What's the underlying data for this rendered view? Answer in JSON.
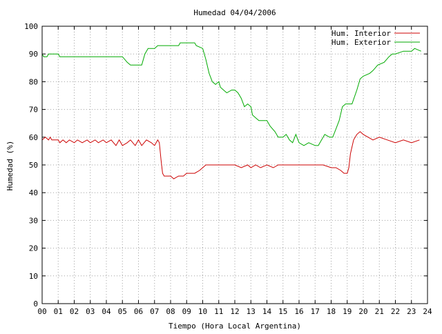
{
  "chart_data": {
    "type": "line",
    "title": "Humedad 04/04/2006",
    "xlabel": "Tiempo (Hora Local Argentina)",
    "ylabel": "Humedad (%)",
    "xlim": [
      0,
      24
    ],
    "ylim": [
      0,
      100
    ],
    "x_ticks": [
      "00",
      "01",
      "02",
      "03",
      "04",
      "05",
      "06",
      "07",
      "08",
      "09",
      "10",
      "11",
      "12",
      "13",
      "14",
      "15",
      "16",
      "17",
      "18",
      "19",
      "20",
      "21",
      "22",
      "23",
      "24"
    ],
    "y_ticks": [
      "0",
      "10",
      "20",
      "30",
      "40",
      "50",
      "60",
      "70",
      "80",
      "90",
      "100"
    ],
    "grid": true,
    "legend_position": "top-right",
    "series": [
      {
        "name": "Hum. Interior",
        "color": "#cc0000",
        "points": [
          [
            0.0,
            59
          ],
          [
            0.2,
            60
          ],
          [
            0.4,
            59
          ],
          [
            0.5,
            60
          ],
          [
            0.6,
            59
          ],
          [
            0.8,
            59
          ],
          [
            1.0,
            59
          ],
          [
            1.1,
            58
          ],
          [
            1.3,
            59
          ],
          [
            1.5,
            58
          ],
          [
            1.7,
            59
          ],
          [
            2.0,
            58
          ],
          [
            2.2,
            59
          ],
          [
            2.5,
            58
          ],
          [
            2.8,
            59
          ],
          [
            3.0,
            58
          ],
          [
            3.3,
            59
          ],
          [
            3.5,
            58
          ],
          [
            3.8,
            59
          ],
          [
            4.0,
            58
          ],
          [
            4.3,
            59
          ],
          [
            4.6,
            57
          ],
          [
            4.8,
            59
          ],
          [
            5.0,
            57
          ],
          [
            5.3,
            58
          ],
          [
            5.5,
            59
          ],
          [
            5.8,
            57
          ],
          [
            6.0,
            59
          ],
          [
            6.2,
            57
          ],
          [
            6.5,
            59
          ],
          [
            6.8,
            58
          ],
          [
            7.0,
            57
          ],
          [
            7.2,
            59
          ],
          [
            7.3,
            58
          ],
          [
            7.4,
            52
          ],
          [
            7.5,
            47
          ],
          [
            7.6,
            46
          ],
          [
            8.0,
            46
          ],
          [
            8.2,
            45
          ],
          [
            8.5,
            46
          ],
          [
            8.8,
            46
          ],
          [
            9.0,
            47
          ],
          [
            9.5,
            47
          ],
          [
            9.8,
            48
          ],
          [
            10.0,
            49
          ],
          [
            10.2,
            50
          ],
          [
            10.5,
            50
          ],
          [
            11.0,
            50
          ],
          [
            11.5,
            50
          ],
          [
            12.0,
            50
          ],
          [
            12.4,
            49
          ],
          [
            12.8,
            50
          ],
          [
            13.0,
            49
          ],
          [
            13.3,
            50
          ],
          [
            13.6,
            49
          ],
          [
            14.0,
            50
          ],
          [
            14.4,
            49
          ],
          [
            14.7,
            50
          ],
          [
            15.0,
            50
          ],
          [
            15.5,
            50
          ],
          [
            16.0,
            50
          ],
          [
            16.5,
            50
          ],
          [
            17.0,
            50
          ],
          [
            17.5,
            50
          ],
          [
            18.0,
            49
          ],
          [
            18.3,
            49
          ],
          [
            18.6,
            48
          ],
          [
            18.8,
            47
          ],
          [
            19.0,
            47
          ],
          [
            19.1,
            49
          ],
          [
            19.2,
            54
          ],
          [
            19.4,
            59
          ],
          [
            19.6,
            61
          ],
          [
            19.8,
            62
          ],
          [
            20.0,
            61
          ],
          [
            20.3,
            60
          ],
          [
            20.6,
            59
          ],
          [
            21.0,
            60
          ],
          [
            21.5,
            59
          ],
          [
            22.0,
            58
          ],
          [
            22.5,
            59
          ],
          [
            23.0,
            58
          ],
          [
            23.5,
            59
          ]
        ]
      },
      {
        "name": "Hum. Exterior",
        "color": "#00aa00",
        "points": [
          [
            0.0,
            90
          ],
          [
            0.1,
            89
          ],
          [
            0.3,
            89
          ],
          [
            0.4,
            90
          ],
          [
            1.0,
            90
          ],
          [
            1.1,
            89
          ],
          [
            2.0,
            89
          ],
          [
            3.0,
            89
          ],
          [
            4.0,
            89
          ],
          [
            5.0,
            89
          ],
          [
            5.3,
            87
          ],
          [
            5.5,
            86
          ],
          [
            6.0,
            86
          ],
          [
            6.2,
            86
          ],
          [
            6.4,
            90
          ],
          [
            6.6,
            92
          ],
          [
            7.0,
            92
          ],
          [
            7.2,
            93
          ],
          [
            8.0,
            93
          ],
          [
            8.5,
            93
          ],
          [
            8.6,
            94
          ],
          [
            9.0,
            94
          ],
          [
            9.5,
            94
          ],
          [
            9.6,
            93
          ],
          [
            10.0,
            92
          ],
          [
            10.2,
            88
          ],
          [
            10.4,
            83
          ],
          [
            10.6,
            80
          ],
          [
            10.8,
            79
          ],
          [
            11.0,
            80
          ],
          [
            11.1,
            78
          ],
          [
            11.3,
            77
          ],
          [
            11.5,
            76
          ],
          [
            11.8,
            77
          ],
          [
            12.0,
            77
          ],
          [
            12.2,
            76
          ],
          [
            12.4,
            74
          ],
          [
            12.6,
            71
          ],
          [
            12.8,
            72
          ],
          [
            13.0,
            71
          ],
          [
            13.1,
            68
          ],
          [
            13.3,
            67
          ],
          [
            13.5,
            66
          ],
          [
            14.0,
            66
          ],
          [
            14.2,
            64
          ],
          [
            14.5,
            62
          ],
          [
            14.7,
            60
          ],
          [
            15.0,
            60
          ],
          [
            15.2,
            61
          ],
          [
            15.4,
            59
          ],
          [
            15.6,
            58
          ],
          [
            15.8,
            61
          ],
          [
            16.0,
            58
          ],
          [
            16.3,
            57
          ],
          [
            16.6,
            58
          ],
          [
            17.0,
            57
          ],
          [
            17.2,
            57
          ],
          [
            17.4,
            59
          ],
          [
            17.6,
            61
          ],
          [
            17.9,
            60
          ],
          [
            18.1,
            60
          ],
          [
            18.3,
            63
          ],
          [
            18.5,
            66
          ],
          [
            18.7,
            71
          ],
          [
            18.9,
            72
          ],
          [
            19.3,
            72
          ],
          [
            19.6,
            77
          ],
          [
            19.8,
            81
          ],
          [
            20.0,
            82
          ],
          [
            20.4,
            83
          ],
          [
            20.6,
            84
          ],
          [
            20.9,
            86
          ],
          [
            21.3,
            87
          ],
          [
            21.6,
            89
          ],
          [
            21.8,
            90
          ],
          [
            22.0,
            90
          ],
          [
            22.5,
            91
          ],
          [
            23.0,
            91
          ],
          [
            23.2,
            92
          ],
          [
            23.6,
            91
          ]
        ]
      }
    ]
  }
}
